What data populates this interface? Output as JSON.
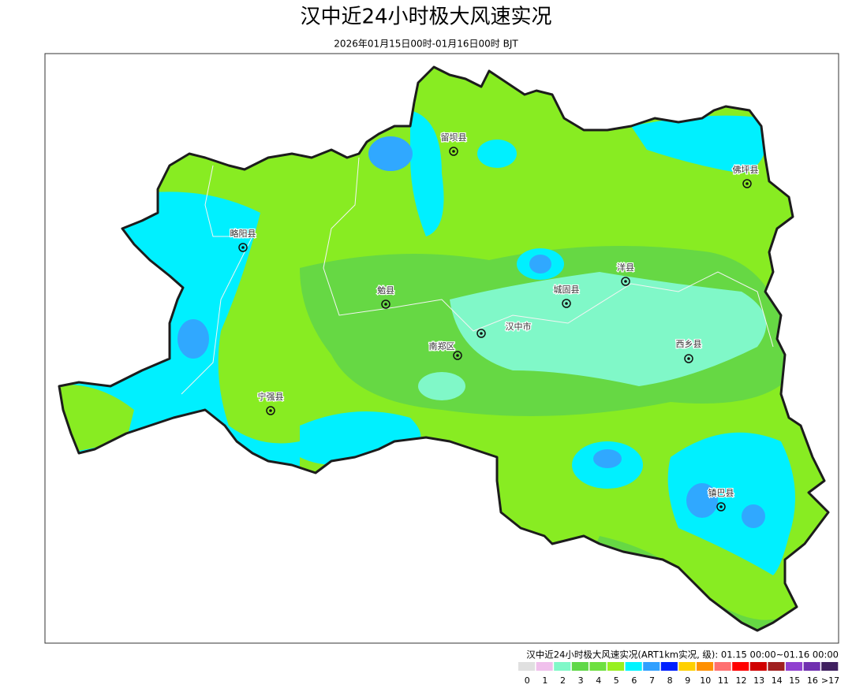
{
  "header": {
    "title": "汉中近24小时极大风速实况",
    "subtitle": "2026年01月15日00时-01月16日00时 BJT"
  },
  "cities": [
    {
      "name": "留坝县"
    },
    {
      "name": "佛坪县"
    },
    {
      "name": "略阳县"
    },
    {
      "name": "洋县"
    },
    {
      "name": "城固县"
    },
    {
      "name": "勉县"
    },
    {
      "name": "汉中市"
    },
    {
      "name": "南郑区"
    },
    {
      "name": "西乡县"
    },
    {
      "name": "宁强县"
    },
    {
      "name": "镇巴县"
    }
  ],
  "legend": {
    "title": "汉中近24小时极大风速实况(ART1km实况, 级): 01.15 00:00~01.16 00:00",
    "items": [
      {
        "label": "0",
        "color": "#e0e0e0"
      },
      {
        "label": "1",
        "color": "#f0c0ec"
      },
      {
        "label": "2",
        "color": "#80f8c8"
      },
      {
        "label": "3",
        "color": "#60d848"
      },
      {
        "label": "4",
        "color": "#6ee040"
      },
      {
        "label": "5",
        "color": "#99f020"
      },
      {
        "label": "6",
        "color": "#00f4ff"
      },
      {
        "label": "7",
        "color": "#30a0ff"
      },
      {
        "label": "8",
        "color": "#0020ff"
      },
      {
        "label": "9",
        "color": "#ffd000"
      },
      {
        "label": "10",
        "color": "#ff9000"
      },
      {
        "label": "11",
        "color": "#ff7070"
      },
      {
        "label": "12",
        "color": "#ff0000"
      },
      {
        "label": "13",
        "color": "#d00000"
      },
      {
        "label": "14",
        "color": "#a02020"
      },
      {
        "label": "15",
        "color": "#9040d0"
      },
      {
        "label": "16",
        "color": "#7030b0"
      },
      {
        "label": ">17",
        "color": "#402060"
      }
    ]
  }
}
